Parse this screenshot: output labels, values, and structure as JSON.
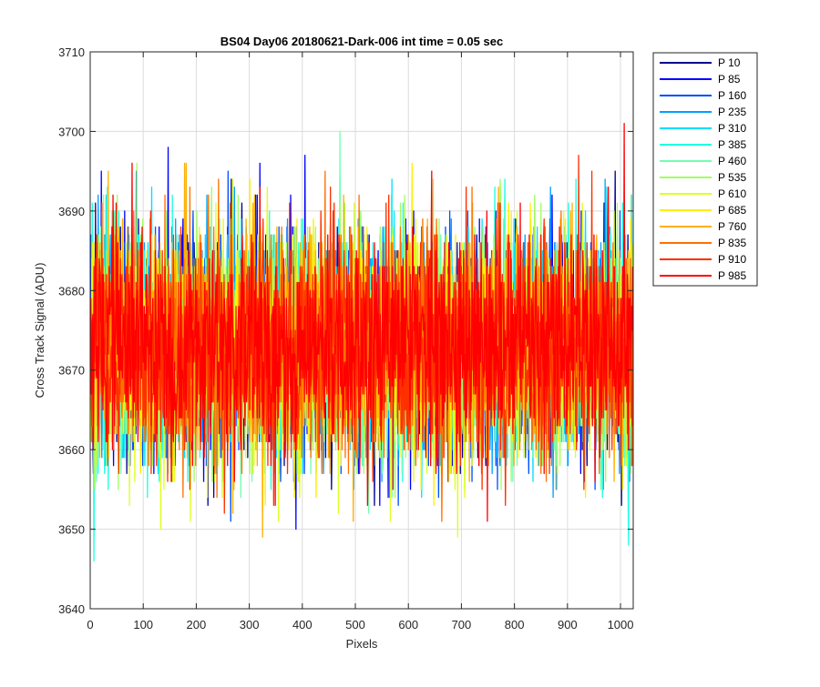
{
  "chart_data": {
    "type": "line",
    "title": "BS04 Day06 20180621-Dark-006 int time = 0.05 sec",
    "xlabel": "Pixels",
    "ylabel": "Cross Track Signal (ADU)",
    "xlim": [
      0,
      1024
    ],
    "ylim": [
      3640,
      3710
    ],
    "xticks": [
      0,
      100,
      200,
      300,
      400,
      500,
      600,
      700,
      800,
      900,
      1000
    ],
    "yticks": [
      3640,
      3650,
      3660,
      3670,
      3680,
      3690,
      3700,
      3710
    ],
    "grid": true,
    "legend_position": "outside-right",
    "n_points": 1024,
    "noise_mean": 3673,
    "noise_std": 7,
    "series": [
      {
        "name": "P 10",
        "color": "#00008f"
      },
      {
        "name": "P 85",
        "color": "#0000ff"
      },
      {
        "name": "P 160",
        "color": "#0050ff"
      },
      {
        "name": "P 235",
        "color": "#00a0ff"
      },
      {
        "name": "P 310",
        "color": "#00dfff"
      },
      {
        "name": "P 385",
        "color": "#20ffdf"
      },
      {
        "name": "P 460",
        "color": "#70ffb0"
      },
      {
        "name": "P 535",
        "color": "#a0ff60"
      },
      {
        "name": "P 610",
        "color": "#dfff20"
      },
      {
        "name": "P 685",
        "color": "#ffef00"
      },
      {
        "name": "P 760",
        "color": "#ffb000"
      },
      {
        "name": "P 835",
        "color": "#ff7000"
      },
      {
        "name": "P 910",
        "color": "#ff3000"
      },
      {
        "name": "P 985",
        "color": "#ff0000"
      }
    ]
  }
}
